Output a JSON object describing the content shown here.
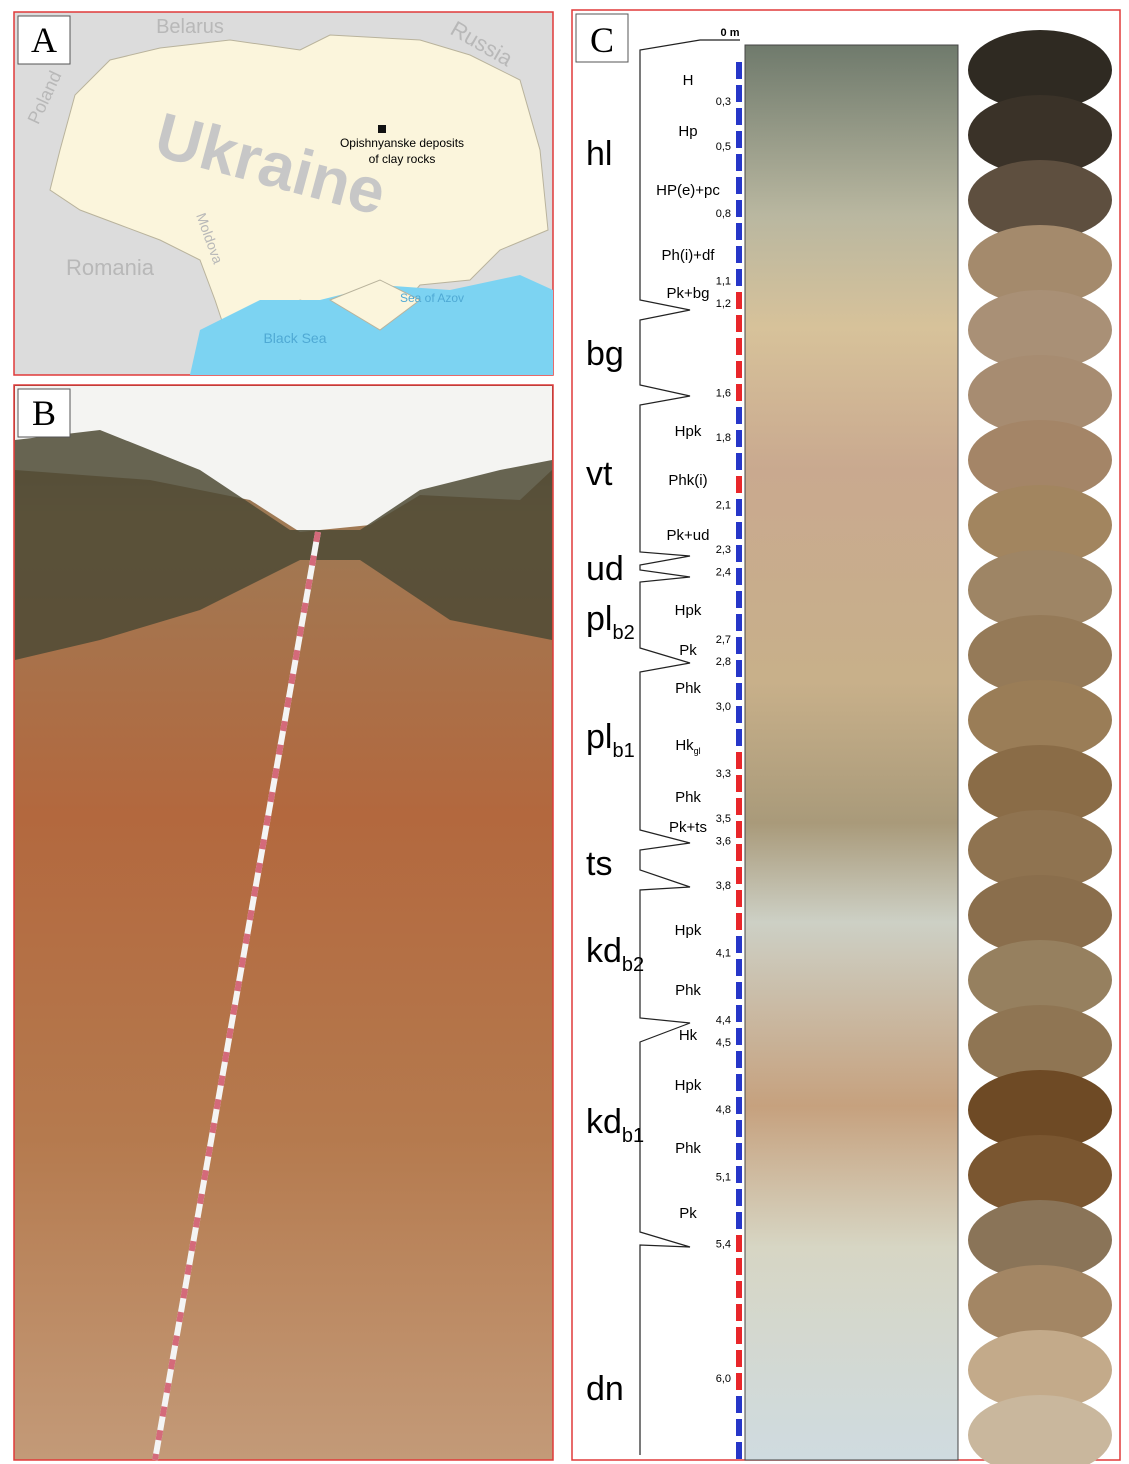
{
  "panel_a": {
    "label": "A",
    "countries": {
      "belarus": "Belarus",
      "russia": "Russia",
      "poland": "Poland",
      "romania": "Romania",
      "moldova": "Moldova"
    },
    "country": "Ukraine",
    "site": [
      "Opishnyanske deposits",
      "of clay rocks"
    ],
    "seas": {
      "black": "Black Sea",
      "azov": "Sea of Azov"
    }
  },
  "panel_b": {
    "label": "B"
  },
  "panel_c": {
    "label": "C",
    "depth_top": "0 m",
    "depths": [
      "0,3",
      "0,5",
      "0,8",
      "1,1",
      "1,2",
      "1,6",
      "1,8",
      "2,1",
      "2,3",
      "2,4",
      "2,7",
      "2,8",
      "3,0",
      "3,3",
      "3,5",
      "3,6",
      "3,8",
      "4,1",
      "4,4",
      "4,5",
      "4,8",
      "5,1",
      "5,4",
      "6,0"
    ],
    "units": [
      {
        "base": "hl"
      },
      {
        "base": "bg"
      },
      {
        "base": "vt"
      },
      {
        "base": "ud"
      },
      {
        "base": "pl",
        "sub": "b2"
      },
      {
        "base": "pl",
        "sub": "b1"
      },
      {
        "base": "ts"
      },
      {
        "base": "kd",
        "sub": "b2"
      },
      {
        "base": "kd",
        "sub": "b1"
      },
      {
        "base": "dn"
      }
    ],
    "horizons": [
      {
        "base": "H"
      },
      {
        "base": "Hp"
      },
      {
        "base": "HP(e)+pc"
      },
      {
        "base": "Ph(i)+df"
      },
      {
        "base": "Pk+bg"
      },
      {
        "base": "Hpk"
      },
      {
        "base": "Phk(i)"
      },
      {
        "base": "Pk+ud"
      },
      {
        "base": "Hpk"
      },
      {
        "base": "Pk"
      },
      {
        "base": "Phk"
      },
      {
        "base": "Hk",
        "sub": "gl"
      },
      {
        "base": "Phk"
      },
      {
        "base": "Pk+ts"
      },
      {
        "base": "Hpk"
      },
      {
        "base": "Phk"
      },
      {
        "base": "Hk"
      },
      {
        "base": "Hpk"
      },
      {
        "base": "Phk"
      },
      {
        "base": "Pk"
      }
    ]
  }
}
